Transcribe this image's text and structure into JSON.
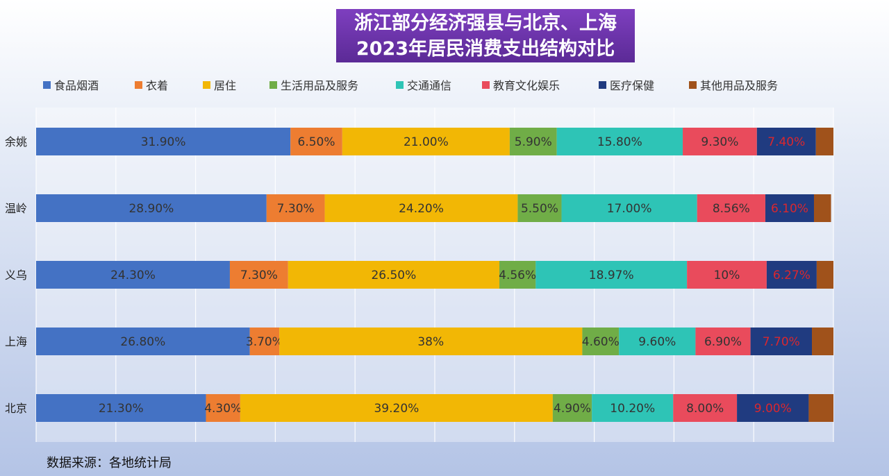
{
  "title_lines": [
    "浙江部分经济强县与北京、上海",
    "2023年居民消费支出结构对比"
  ],
  "source": "数据来源：各地统计局",
  "colors": {
    "title_bg": "#6a35a8",
    "label_red": "#d9272e",
    "label_dark": "#333333"
  },
  "chart_data": {
    "type": "bar",
    "orientation": "horizontal",
    "stacked": true,
    "title": "浙江部分经济强县与北京、上海 2023年居民消费支出结构对比",
    "categories": [
      "余姚",
      "温岭",
      "义乌",
      "上海",
      "北京"
    ],
    "xlim": [
      0,
      100
    ],
    "grid": true,
    "legend_position": "top",
    "series": [
      {
        "name": "食品烟酒",
        "color": "#4472c4",
        "values": [
          31.9,
          28.9,
          24.3,
          26.8,
          21.3
        ],
        "labels": [
          "31.90%",
          "28.90%",
          "24.30%",
          "26.80%",
          "21.30%"
        ],
        "label_color": "#333333"
      },
      {
        "name": "衣着",
        "color": "#ed7d31",
        "values": [
          6.5,
          7.3,
          7.3,
          3.7,
          4.3
        ],
        "labels": [
          "6.50%",
          "7.30%",
          "7.30%",
          "3.70%",
          "4.30%"
        ],
        "label_color": "#333333"
      },
      {
        "name": "居住",
        "color": "#f2b705",
        "values": [
          21.0,
          24.2,
          26.5,
          38.0,
          39.2
        ],
        "labels": [
          "21.00%",
          "24.20%",
          "26.50%",
          "38%",
          "39.20%"
        ],
        "label_color": "#333333"
      },
      {
        "name": "生活用品及服务",
        "color": "#70ad47",
        "values": [
          5.9,
          5.5,
          4.56,
          4.6,
          4.9
        ],
        "labels": [
          "5.90%",
          "5.50%",
          "4.56%",
          "4.60%",
          "4.90%"
        ],
        "label_color": "#333333"
      },
      {
        "name": "交通通信",
        "color": "#2ec4b6",
        "values": [
          15.8,
          17.0,
          18.97,
          9.6,
          10.2
        ],
        "labels": [
          "15.80%",
          "17.00%",
          "18.97%",
          "9.60%",
          "10.20%"
        ],
        "label_color": "#333333"
      },
      {
        "name": "教育文化娱乐",
        "color": "#e94b5c",
        "values": [
          9.3,
          8.56,
          10.0,
          6.9,
          8.0
        ],
        "labels": [
          "9.30%",
          "8.56%",
          "10%",
          "6.90%",
          "8.00%"
        ],
        "label_color": "#333333"
      },
      {
        "name": "医疗保健",
        "color": "#203b80",
        "values": [
          7.4,
          6.1,
          6.27,
          7.7,
          9.0
        ],
        "labels": [
          "7.40%",
          "6.10%",
          "6.27%",
          "7.70%",
          "9.00%"
        ],
        "label_color": "#d9272e"
      },
      {
        "name": "其他用品及服务",
        "color": "#a0521b",
        "values": [
          2.2,
          2.14,
          2.1,
          2.7,
          3.1
        ],
        "labels": [
          "",
          "",
          "",
          "",
          ""
        ],
        "label_color": "#333333"
      }
    ]
  }
}
